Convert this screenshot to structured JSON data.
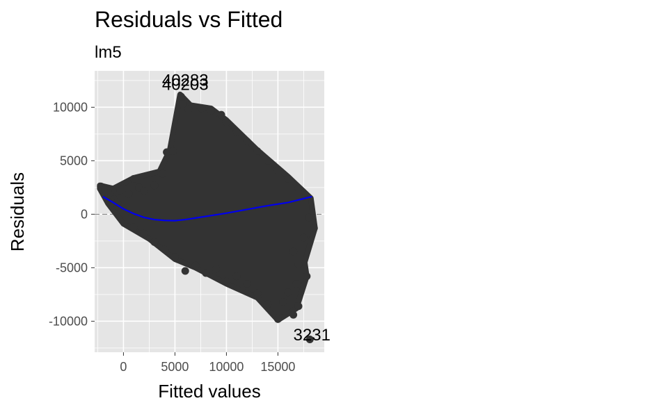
{
  "chart_data": {
    "type": "scatter",
    "title": "Residuals vs Fitted",
    "subtitle": "lm5",
    "xlabel": "Fitted values",
    "ylabel": "Residuals",
    "xlim": [
      -2800,
      19500
    ],
    "ylim": [
      -12900,
      13400
    ],
    "x_ticks": [
      0,
      5000,
      10000,
      15000
    ],
    "x_tick_labels": [
      "0",
      "5000",
      "10000",
      "15000"
    ],
    "y_ticks": [
      -10000,
      -5000,
      0,
      5000,
      10000
    ],
    "y_tick_labels": [
      "-10000",
      "-5000",
      "0",
      "5000",
      "10000"
    ],
    "grid": true,
    "reference_line": {
      "y": 0,
      "style": "dashed"
    },
    "colors": {
      "panel": "#e5e5e5",
      "points": "#333333",
      "smooth": "#0000ee",
      "grid": "#ffffff",
      "reference": "#777777"
    },
    "point_labels": [
      {
        "text": "40283",
        "x": 6000,
        "y": 12000
      },
      {
        "text": "40203",
        "x": 6000,
        "y": 11600
      },
      {
        "text": "3231",
        "x": 18300,
        "y": -11800
      }
    ],
    "smooth_curve": [
      {
        "x": -2000,
        "y": 1650
      },
      {
        "x": -1000,
        "y": 1100
      },
      {
        "x": 0,
        "y": 500
      },
      {
        "x": 1000,
        "y": 50
      },
      {
        "x": 2000,
        "y": -300
      },
      {
        "x": 3000,
        "y": -500
      },
      {
        "x": 4000,
        "y": -580
      },
      {
        "x": 5000,
        "y": -600
      },
      {
        "x": 6000,
        "y": -500
      },
      {
        "x": 7000,
        "y": -350
      },
      {
        "x": 8000,
        "y": -200
      },
      {
        "x": 10000,
        "y": 100
      },
      {
        "x": 12000,
        "y": 450
      },
      {
        "x": 14000,
        "y": 800
      },
      {
        "x": 16000,
        "y": 1100
      },
      {
        "x": 18300,
        "y": 1650
      }
    ],
    "points": [
      {
        "x": -2200,
        "y": 2600
      },
      {
        "x": -1800,
        "y": 2300
      },
      {
        "x": -1500,
        "y": 2000
      },
      {
        "x": -1200,
        "y": 1700
      },
      {
        "x": -900,
        "y": 1400
      },
      {
        "x": -600,
        "y": 1100
      },
      {
        "x": -300,
        "y": 2200
      },
      {
        "x": 0,
        "y": 2400
      },
      {
        "x": 500,
        "y": 1900
      },
      {
        "x": 1000,
        "y": 3300
      },
      {
        "x": 1500,
        "y": 2500
      },
      {
        "x": 2000,
        "y": 2200
      },
      {
        "x": 3000,
        "y": 2700
      },
      {
        "x": 3800,
        "y": 3800
      },
      {
        "x": 4200,
        "y": 5800
      },
      {
        "x": 4800,
        "y": 5900
      },
      {
        "x": 5600,
        "y": 11000
      },
      {
        "x": 5800,
        "y": 10300
      },
      {
        "x": 6300,
        "y": 9800
      },
      {
        "x": 7600,
        "y": 9900
      },
      {
        "x": 8500,
        "y": 9700
      },
      {
        "x": 9500,
        "y": 9300
      },
      {
        "x": 10000,
        "y": 8600
      },
      {
        "x": 11000,
        "y": 7700
      },
      {
        "x": 12000,
        "y": 6800
      },
      {
        "x": 13000,
        "y": 5900
      },
      {
        "x": 14000,
        "y": 5000
      },
      {
        "x": 15000,
        "y": 4100
      },
      {
        "x": 16000,
        "y": 3300
      },
      {
        "x": 17000,
        "y": 2400
      },
      {
        "x": 18000,
        "y": -300
      },
      {
        "x": 18500,
        "y": -1300
      },
      {
        "x": 17500,
        "y": -2200
      },
      {
        "x": 16500,
        "y": -3500
      },
      {
        "x": 17000,
        "y": -4700
      },
      {
        "x": 17800,
        "y": -5800
      },
      {
        "x": 16800,
        "y": -6500
      },
      {
        "x": 16000,
        "y": -7300
      },
      {
        "x": 15500,
        "y": -8200
      },
      {
        "x": 15000,
        "y": -9800
      },
      {
        "x": 16500,
        "y": -9400
      },
      {
        "x": 17000,
        "y": -8600
      },
      {
        "x": 14000,
        "y": -8400
      },
      {
        "x": 13000,
        "y": -7400
      },
      {
        "x": 12000,
        "y": -6500
      },
      {
        "x": 11000,
        "y": -5800
      },
      {
        "x": 10000,
        "y": -6300
      },
      {
        "x": 9000,
        "y": -5100
      },
      {
        "x": 8000,
        "y": -5500
      },
      {
        "x": 7000,
        "y": -4800
      },
      {
        "x": 6000,
        "y": -5300
      },
      {
        "x": 5000,
        "y": -4000
      },
      {
        "x": 4000,
        "y": -3300
      },
      {
        "x": 3000,
        "y": -2600
      },
      {
        "x": 2000,
        "y": -1800
      },
      {
        "x": 1000,
        "y": -1200
      },
      {
        "x": 18100,
        "y": -11700
      }
    ]
  }
}
